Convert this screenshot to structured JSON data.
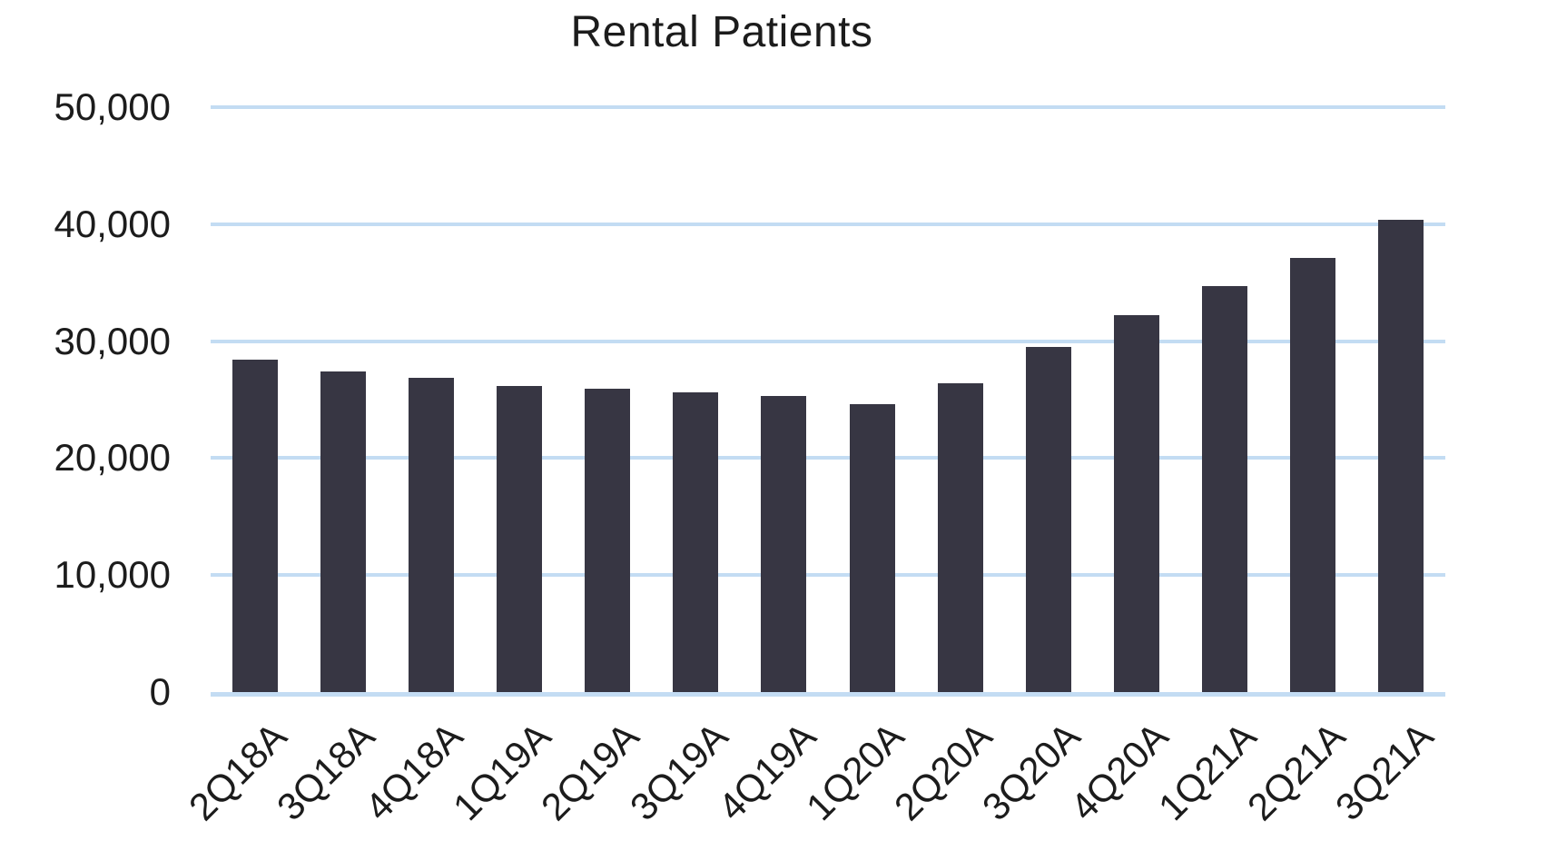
{
  "chart_data": {
    "type": "bar",
    "title": "Rental Patients",
    "categories": [
      "2Q18A",
      "3Q18A",
      "4Q18A",
      "1Q19A",
      "2Q19A",
      "3Q19A",
      "4Q19A",
      "1Q20A",
      "2Q20A",
      "3Q20A",
      "4Q20A",
      "1Q21A",
      "2Q21A",
      "3Q21A"
    ],
    "values": [
      28400,
      27400,
      26900,
      26200,
      25900,
      25600,
      25300,
      24600,
      26400,
      29500,
      32200,
      34700,
      37100,
      40400
    ],
    "xlabel": "",
    "ylabel": "",
    "ylim": [
      0,
      50000
    ],
    "ytick_interval": 10000,
    "yticks": {
      "values": [
        0,
        10000,
        20000,
        30000,
        40000,
        50000
      ],
      "labels": [
        "0",
        "10,000",
        "20,000",
        "30,000",
        "40,000",
        "50,000"
      ]
    },
    "grid": true,
    "legend": "none",
    "colors": {
      "bar": "#373643",
      "gridline": "#c3dcf3",
      "baseline": "#c3dcf3",
      "text": "#1c1c1c",
      "background": "#ffffff"
    }
  }
}
